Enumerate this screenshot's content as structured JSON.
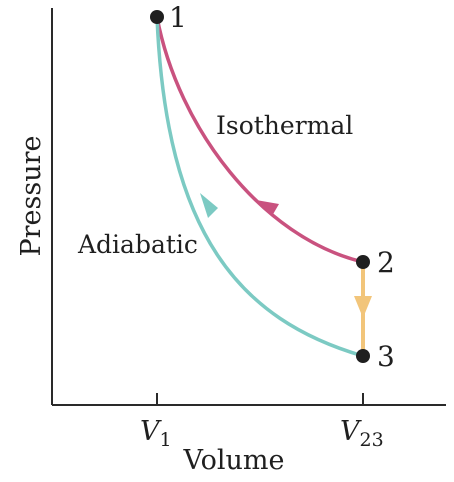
{
  "diagram": {
    "type": "pv-cycle",
    "axes": {
      "xlabel": "Volume",
      "ylabel": "Pressure",
      "ticks": [
        {
          "base": "V",
          "sub": "1"
        },
        {
          "base": "V",
          "sub": "23"
        }
      ]
    },
    "points": [
      {
        "label": "1"
      },
      {
        "label": "2"
      },
      {
        "label": "3"
      }
    ],
    "processes": [
      {
        "name": "Isothermal",
        "from": "1",
        "to": "2",
        "color": "#c9527f"
      },
      {
        "name": "",
        "from": "2",
        "to": "3",
        "color": "#f2c57a"
      },
      {
        "name": "Adiabatic",
        "from": "3",
        "to": "1",
        "color": "#7ccac3"
      }
    ],
    "colors": {
      "axis": "#2a2a2a",
      "point": "#1f1f1f",
      "isothermal": "#c9527f",
      "isochoric": "#f2c57a",
      "adiabatic": "#7ccac3"
    }
  }
}
